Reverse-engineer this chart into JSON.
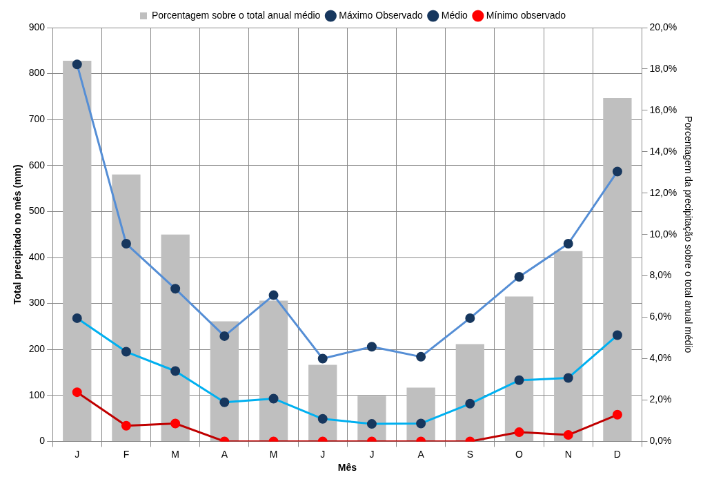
{
  "chart_data": {
    "type": "bar",
    "categories": [
      "J",
      "F",
      "M",
      "A",
      "M",
      "J",
      "J",
      "A",
      "S",
      "O",
      "N",
      "D"
    ],
    "xlabel": "Mês",
    "ylabel": "Total precipitado no mês (mm)",
    "y2label": "Porcentagem da precipitação sobre o total anual médio",
    "series": [
      {
        "name": "Porcentagem sobre o total anual médio",
        "axis": "y2",
        "color": "#bfbfbf",
        "values": [
          18.4,
          12.9,
          10.0,
          5.8,
          6.8,
          3.7,
          2.2,
          2.6,
          4.7,
          7.0,
          9.2,
          16.6
        ]
      },
      {
        "name": "Máximo Observado",
        "type": "line",
        "color": "#558ed5",
        "values": [
          820,
          430,
          332,
          229,
          318,
          180,
          206,
          184,
          268,
          358,
          430,
          587
        ]
      },
      {
        "name": "Médio",
        "type": "line",
        "color": "#00b0f0",
        "values": [
          268,
          195,
          153,
          85,
          93,
          49,
          38,
          39,
          82,
          133,
          138,
          231
        ]
      },
      {
        "name": "Mínimo observado",
        "type": "line",
        "color": "#c00000",
        "values": [
          107,
          34,
          39,
          0,
          0,
          0,
          0,
          0,
          0,
          20,
          14,
          58
        ]
      }
    ],
    "ylim": [
      0,
      900
    ],
    "yticks": [
      0,
      100,
      200,
      300,
      400,
      500,
      600,
      700,
      800,
      900
    ],
    "y2lim": [
      0,
      20
    ],
    "y2ticks": [
      {
        "value": 0,
        "label": "0,0%"
      },
      {
        "value": 2,
        "label": "2,0%"
      },
      {
        "value": 4,
        "label": "4,0%"
      },
      {
        "value": 6,
        "label": "6,0%"
      },
      {
        "value": 8,
        "label": "8,0%"
      },
      {
        "value": 10,
        "label": "10,0%"
      },
      {
        "value": 12,
        "label": "12,0%"
      },
      {
        "value": 14,
        "label": "14,0%"
      },
      {
        "value": 16,
        "label": "16,0%"
      },
      {
        "value": 18,
        "label": "18,0%"
      },
      {
        "value": 20,
        "label": "20,0%"
      }
    ],
    "grid": true,
    "legend": "top",
    "marker": "circle",
    "line_style": "solid"
  }
}
